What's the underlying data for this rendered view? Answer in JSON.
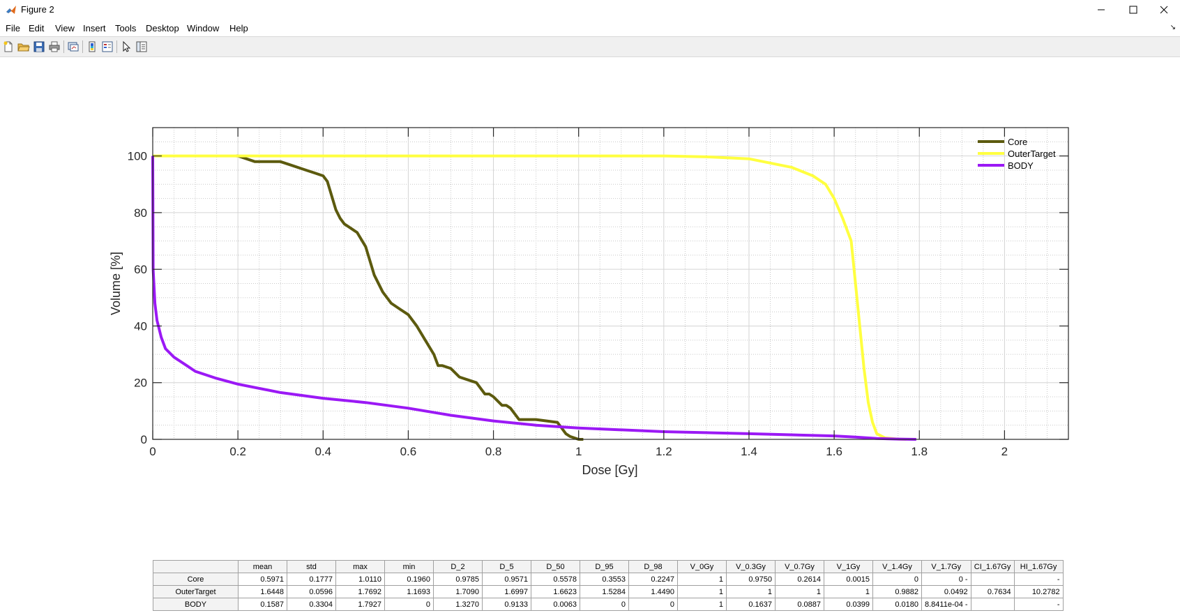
{
  "window": {
    "title": "Figure 2",
    "app_icon": "matlab-icon",
    "controls": [
      "minimize-icon",
      "maximize-icon",
      "close-icon"
    ]
  },
  "menu": {
    "items": [
      "File",
      "Edit",
      "View",
      "Insert",
      "Tools",
      "Desktop",
      "Window",
      "Help"
    ]
  },
  "toolbar": {
    "buttons": [
      "new-figure-icon",
      "open-file-icon",
      "save-icon",
      "print-icon",
      "link-plot-icon",
      "insert-colorbar-icon",
      "insert-legend-icon",
      "edit-plot-icon",
      "plot-browser-icon"
    ]
  },
  "chart_data": {
    "type": "line",
    "xlabel": "Dose [Gy]",
    "ylabel": "Volume [%]",
    "xlim": [
      0,
      2.15
    ],
    "ylim": [
      0,
      110
    ],
    "xticks": [
      "0",
      "0.2",
      "0.4",
      "0.6",
      "0.8",
      "1",
      "1.2",
      "1.4",
      "1.6",
      "1.8",
      "2"
    ],
    "yticks": [
      "0",
      "20",
      "40",
      "60",
      "80",
      "100"
    ],
    "grid": true,
    "minor_grid": true,
    "legend_position": "top-right",
    "series": [
      {
        "name": "Core",
        "color": "#5c5a0e",
        "x": [
          0.196,
          0.2,
          0.22,
          0.24,
          0.3,
          0.32,
          0.36,
          0.38,
          0.4,
          0.41,
          0.42,
          0.43,
          0.44,
          0.45,
          0.46,
          0.48,
          0.5,
          0.52,
          0.54,
          0.56,
          0.58,
          0.6,
          0.62,
          0.64,
          0.66,
          0.67,
          0.68,
          0.7,
          0.72,
          0.74,
          0.76,
          0.78,
          0.79,
          0.8,
          0.82,
          0.83,
          0.84,
          0.86,
          0.87,
          0.9,
          0.95,
          0.96,
          0.97,
          0.98,
          1.0,
          1.011
        ],
        "y": [
          100,
          100,
          99,
          98,
          98,
          97,
          95,
          94,
          93,
          91,
          86,
          81,
          78,
          76,
          75,
          73,
          68,
          58,
          52,
          48,
          46,
          44,
          40,
          35,
          30,
          26,
          26,
          25,
          22,
          21,
          20,
          16,
          16,
          15,
          12,
          12,
          11,
          7,
          7,
          7,
          6,
          4,
          2,
          1,
          0,
          0
        ]
      },
      {
        "name": "OuterTarget",
        "color": "#ffff40",
        "x": [
          0,
          0.2,
          0.4,
          0.6,
          0.8,
          1.0,
          1.2,
          1.3,
          1.4,
          1.45,
          1.5,
          1.55,
          1.58,
          1.6,
          1.62,
          1.64,
          1.65,
          1.66,
          1.67,
          1.68,
          1.69,
          1.7,
          1.72,
          1.75,
          1.7692
        ],
        "y": [
          100,
          100,
          100,
          100,
          100,
          100,
          100,
          99.7,
          99,
          97.5,
          96,
          93,
          90,
          85,
          78,
          70,
          55,
          40,
          25,
          13,
          6,
          2,
          0.5,
          0.1,
          0
        ]
      },
      {
        "name": "BODY",
        "color": "#9b19f5",
        "x": [
          0,
          0.001,
          0.005,
          0.01,
          0.02,
          0.03,
          0.05,
          0.08,
          0.1,
          0.15,
          0.2,
          0.3,
          0.4,
          0.5,
          0.6,
          0.7,
          0.8,
          0.9,
          1.0,
          1.2,
          1.4,
          1.6,
          1.65,
          1.7,
          1.75,
          1.7927
        ],
        "y": [
          100,
          60,
          48,
          42,
          36,
          32,
          29,
          26,
          24,
          21.5,
          19.5,
          16.5,
          14.5,
          13,
          11,
          8.5,
          6.5,
          5,
          4,
          2.7,
          2.0,
          1.2,
          0.8,
          0.3,
          0.1,
          0
        ]
      }
    ]
  },
  "stats_table": {
    "columns": [
      "mean",
      "std",
      "max",
      "min",
      "D_2",
      "D_5",
      "D_50",
      "D_95",
      "D_98",
      "V_0Gy",
      "V_0.3Gy",
      "V_0.7Gy",
      "V_1Gy",
      "V_1.4Gy",
      "V_1.7Gy",
      "CI_1.67Gy",
      "HI_1.67Gy"
    ],
    "rows": [
      {
        "name": "Core",
        "values": [
          "0.5971",
          "0.1777",
          "1.0110",
          "0.1960",
          "0.9785",
          "0.9571",
          "0.5578",
          "0.3553",
          "0.2247",
          "1",
          "0.9750",
          "0.2614",
          "0.0015",
          "0",
          "0 -",
          "",
          "-"
        ]
      },
      {
        "name": "OuterTarget",
        "values": [
          "1.6448",
          "0.0596",
          "1.7692",
          "1.1693",
          "1.7090",
          "1.6997",
          "1.6623",
          "1.5284",
          "1.4490",
          "1",
          "1",
          "1",
          "1",
          "0.9882",
          "0.0492",
          "0.7634",
          "10.2782"
        ]
      },
      {
        "name": "BODY",
        "values": [
          "0.1587",
          "0.3304",
          "1.7927",
          "0",
          "1.3270",
          "0.9133",
          "0.0063",
          "0",
          "0",
          "1",
          "0.1637",
          "0.0887",
          "0.0399",
          "0.0180",
          "8.8411e-04 -",
          "",
          "-"
        ]
      }
    ]
  }
}
